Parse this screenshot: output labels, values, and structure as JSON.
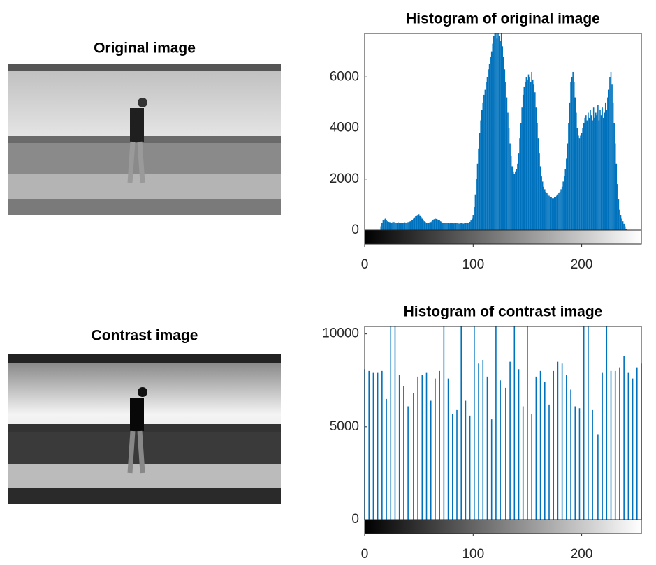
{
  "images": [
    {
      "title": "Original image"
    },
    {
      "title": "Contrast image"
    }
  ],
  "chart_data": [
    {
      "type": "histogram",
      "title": "Histogram of original image",
      "color": "#0072bd",
      "xlim": [
        0,
        255
      ],
      "ylim": [
        0,
        7700
      ],
      "xticks": [
        0,
        100,
        200
      ],
      "yticks": [
        0,
        2000,
        4000,
        6000
      ],
      "x": [
        0,
        1,
        2,
        3,
        4,
        5,
        6,
        7,
        8,
        9,
        10,
        11,
        12,
        13,
        14,
        15,
        16,
        17,
        18,
        19,
        20,
        21,
        22,
        23,
        24,
        25,
        26,
        27,
        28,
        29,
        30,
        31,
        32,
        33,
        34,
        35,
        36,
        37,
        38,
        39,
        40,
        41,
        42,
        43,
        44,
        45,
        46,
        47,
        48,
        49,
        50,
        51,
        52,
        53,
        54,
        55,
        56,
        57,
        58,
        59,
        60,
        61,
        62,
        63,
        64,
        65,
        66,
        67,
        68,
        69,
        70,
        71,
        72,
        73,
        74,
        75,
        76,
        77,
        78,
        79,
        80,
        81,
        82,
        83,
        84,
        85,
        86,
        87,
        88,
        89,
        90,
        91,
        92,
        93,
        94,
        95,
        96,
        97,
        98,
        99,
        100,
        101,
        102,
        103,
        104,
        105,
        106,
        107,
        108,
        109,
        110,
        111,
        112,
        113,
        114,
        115,
        116,
        117,
        118,
        119,
        120,
        121,
        122,
        123,
        124,
        125,
        126,
        127,
        128,
        129,
        130,
        131,
        132,
        133,
        134,
        135,
        136,
        137,
        138,
        139,
        140,
        141,
        142,
        143,
        144,
        145,
        146,
        147,
        148,
        149,
        150,
        151,
        152,
        153,
        154,
        155,
        156,
        157,
        158,
        159,
        160,
        161,
        162,
        163,
        164,
        165,
        166,
        167,
        168,
        169,
        170,
        171,
        172,
        173,
        174,
        175,
        176,
        177,
        178,
        179,
        180,
        181,
        182,
        183,
        184,
        185,
        186,
        187,
        188,
        189,
        190,
        191,
        192,
        193,
        194,
        195,
        196,
        197,
        198,
        199,
        200,
        201,
        202,
        203,
        204,
        205,
        206,
        207,
        208,
        209,
        210,
        211,
        212,
        213,
        214,
        215,
        216,
        217,
        218,
        219,
        220,
        221,
        222,
        223,
        224,
        225,
        226,
        227,
        228,
        229,
        230,
        231,
        232,
        233,
        234,
        235,
        236,
        237,
        238,
        239,
        240,
        241,
        242,
        243,
        244,
        245,
        246,
        247,
        248,
        249,
        250,
        251,
        252,
        253,
        254,
        255
      ],
      "values": [
        0,
        0,
        0,
        0,
        0,
        0,
        0,
        0,
        0,
        0,
        0,
        0,
        0,
        0,
        0,
        150,
        300,
        380,
        420,
        450,
        400,
        350,
        330,
        320,
        310,
        300,
        330,
        320,
        300,
        290,
        300,
        310,
        300,
        290,
        300,
        280,
        300,
        310,
        290,
        300,
        320,
        330,
        350,
        380,
        400,
        450,
        500,
        550,
        580,
        600,
        620,
        580,
        520,
        450,
        400,
        350,
        320,
        300,
        290,
        300,
        310,
        320,
        350,
        400,
        430,
        450,
        440,
        420,
        400,
        380,
        350,
        320,
        300,
        290,
        280,
        290,
        300,
        280,
        270,
        280,
        290,
        280,
        270,
        280,
        290,
        280,
        270,
        260,
        270,
        280,
        270,
        260,
        270,
        280,
        290,
        280,
        300,
        330,
        380,
        450,
        600,
        900,
        1400,
        2000,
        2600,
        3200,
        3800,
        4300,
        4700,
        5000,
        5300,
        5500,
        5800,
        6000,
        6300,
        6500,
        6800,
        7000,
        7300,
        7600,
        7700,
        7700,
        7500,
        7700,
        7600,
        7400,
        7700,
        7200,
        6800,
        6300,
        5800,
        5200,
        4600,
        4000,
        3400,
        2900,
        2500,
        2300,
        2200,
        2300,
        2400,
        2600,
        3000,
        3600,
        4200,
        4800,
        5300,
        5600,
        5800,
        6000,
        5900,
        6100,
        6000,
        5800,
        6200,
        5900,
        5700,
        5400,
        4800,
        4200,
        3600,
        3000,
        2500,
        2100,
        1900,
        1700,
        1600,
        1500,
        1450,
        1400,
        1350,
        1300,
        1300,
        1250,
        1250,
        1300,
        1300,
        1350,
        1400,
        1450,
        1500,
        1600,
        1700,
        1900,
        2100,
        2400,
        2800,
        3400,
        4200,
        5000,
        5800,
        6000,
        6200,
        5800,
        5200,
        4600,
        4000,
        3700,
        3600,
        3700,
        3800,
        4000,
        4200,
        4400,
        4500,
        4300,
        4600,
        4400,
        4700,
        4500,
        4300,
        4800,
        4400,
        4600,
        4500,
        4900,
        4300,
        4700,
        4500,
        4800,
        4400,
        4600,
        5000,
        4700,
        5200,
        5500,
        6000,
        6200,
        5700,
        5000,
        4200,
        3400,
        2600,
        1800,
        1200,
        800,
        600,
        450,
        350,
        250,
        150,
        50,
        0,
        0,
        0,
        0,
        0,
        0,
        0,
        0,
        0,
        0,
        0,
        0,
        0,
        0
      ]
    },
    {
      "type": "stem",
      "title": "Histogram of contrast image",
      "color": "#0072bd",
      "xlim": [
        0,
        255
      ],
      "ylim": [
        0,
        10400
      ],
      "xticks": [
        0,
        100,
        200
      ],
      "yticks": [
        0,
        5000,
        10000
      ],
      "x": [
        0,
        4,
        8,
        12,
        16,
        20,
        24,
        28,
        32,
        36,
        40,
        45,
        49,
        53,
        57,
        61,
        65,
        69,
        73,
        77,
        81,
        85,
        89,
        93,
        97,
        101,
        105,
        109,
        113,
        117,
        121,
        125,
        130,
        134,
        138,
        142,
        146,
        150,
        154,
        158,
        162,
        166,
        170,
        174,
        178,
        182,
        186,
        190,
        194,
        198,
        202,
        206,
        210,
        215,
        219,
        223,
        227,
        231,
        235,
        239,
        243,
        247,
        251,
        255
      ],
      "values": [
        8100,
        8000,
        7900,
        7900,
        8000,
        6500,
        10400,
        10400,
        7800,
        7200,
        6100,
        6800,
        7700,
        7800,
        7900,
        6400,
        7600,
        8000,
        10400,
        7600,
        5700,
        5900,
        10400,
        6400,
        5600,
        10400,
        8400,
        8600,
        7700,
        5400,
        10400,
        7500,
        7100,
        8500,
        10400,
        8100,
        6100,
        10400,
        5700,
        7700,
        8000,
        7400,
        6200,
        8000,
        8500,
        8400,
        7800,
        7000,
        6100,
        6000,
        10400,
        10400,
        5900,
        4600,
        7900,
        10400,
        8000,
        8000,
        8200,
        8800,
        7900,
        7600,
        8200,
        8400
      ]
    }
  ]
}
